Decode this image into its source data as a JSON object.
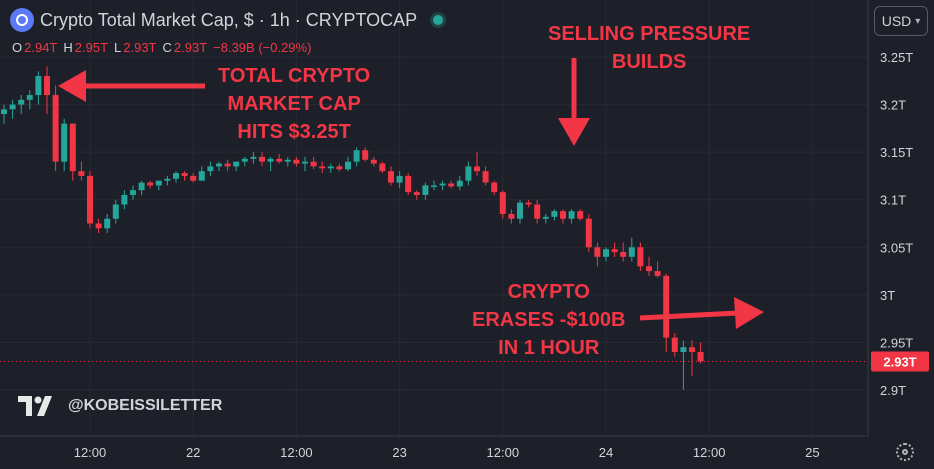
{
  "header": {
    "title": "Crypto Total Market Cap, $ · 1h · CRYPTOCAP",
    "ohlc": [
      {
        "k": "O",
        "v": "2.94T"
      },
      {
        "k": "H",
        "v": "2.95T"
      },
      {
        "k": "L",
        "v": "2.93T"
      },
      {
        "k": "C",
        "v": "2.93T"
      },
      {
        "k": "",
        "v": "−8.39B (−0.29%)"
      }
    ]
  },
  "currency": "USD",
  "annotations": {
    "peak": [
      "TOTAL CRYPTO",
      "MARKET CAP",
      "HITS $3.25T"
    ],
    "selling": [
      "SELLING PRESSURE",
      "BUILDS"
    ],
    "crash": [
      "CRYPTO",
      "ERASES -$100B",
      "IN 1 HOUR"
    ]
  },
  "watermark": "@KOBEISSILETTER",
  "icons": {
    "logo": "crypto-logo-icon",
    "tv": "tradingview-logo-icon",
    "settings": "gear-icon",
    "currency_chevron": "chevron-down-icon"
  },
  "colors": {
    "up": "#26a69a",
    "down": "#f23645",
    "annotation": "#f23645",
    "background": "#1e2029"
  },
  "chart_data": {
    "type": "candlestick",
    "y_unit": "trillion USD",
    "ylim": [
      2.85,
      3.28
    ],
    "y_ticks": [
      {
        "v": 3.25,
        "label": "3.25T"
      },
      {
        "v": 3.2,
        "label": "3.2T"
      },
      {
        "v": 3.15,
        "label": "3.15T"
      },
      {
        "v": 3.1,
        "label": "3.1T"
      },
      {
        "v": 3.05,
        "label": "3.05T"
      },
      {
        "v": 3.0,
        "label": "3T"
      },
      {
        "v": 2.95,
        "label": "2.95T"
      },
      {
        "v": 2.9,
        "label": "2.9T"
      }
    ],
    "x_ticks": [
      {
        "i": 10,
        "label": "12:00"
      },
      {
        "i": 22,
        "label": "22"
      },
      {
        "i": 34,
        "label": "12:00"
      },
      {
        "i": 46,
        "label": "23"
      },
      {
        "i": 58,
        "label": "12:00"
      },
      {
        "i": 70,
        "label": "24"
      },
      {
        "i": 82,
        "label": "12:00"
      },
      {
        "i": 94,
        "label": "25"
      }
    ],
    "last_price": {
      "v": 2.93,
      "label": "2.93T"
    },
    "candles": [
      [
        3.19,
        3.2,
        3.18,
        3.195
      ],
      [
        3.195,
        3.205,
        3.185,
        3.2
      ],
      [
        3.2,
        3.21,
        3.19,
        3.205
      ],
      [
        3.205,
        3.215,
        3.195,
        3.21
      ],
      [
        3.21,
        3.235,
        3.2,
        3.23
      ],
      [
        3.23,
        3.24,
        3.19,
        3.21
      ],
      [
        3.21,
        3.22,
        3.13,
        3.14
      ],
      [
        3.14,
        3.185,
        3.13,
        3.18
      ],
      [
        3.18,
        3.18,
        3.12,
        3.13
      ],
      [
        3.13,
        3.14,
        3.12,
        3.125
      ],
      [
        3.125,
        3.13,
        3.07,
        3.075
      ],
      [
        3.075,
        3.08,
        3.065,
        3.07
      ],
      [
        3.07,
        3.085,
        3.065,
        3.08
      ],
      [
        3.08,
        3.1,
        3.075,
        3.095
      ],
      [
        3.095,
        3.11,
        3.09,
        3.105
      ],
      [
        3.105,
        3.115,
        3.1,
        3.11
      ],
      [
        3.11,
        3.12,
        3.105,
        3.118
      ],
      [
        3.118,
        3.12,
        3.112,
        3.115
      ],
      [
        3.115,
        3.12,
        3.11,
        3.12
      ],
      [
        3.12,
        3.125,
        3.115,
        3.122
      ],
      [
        3.122,
        3.13,
        3.118,
        3.128
      ],
      [
        3.128,
        3.13,
        3.12,
        3.125
      ],
      [
        3.125,
        3.128,
        3.118,
        3.12
      ],
      [
        3.12,
        3.135,
        3.12,
        3.13
      ],
      [
        3.13,
        3.14,
        3.125,
        3.135
      ],
      [
        3.135,
        3.14,
        3.13,
        3.138
      ],
      [
        3.138,
        3.142,
        3.13,
        3.135
      ],
      [
        3.135,
        3.14,
        3.13,
        3.14
      ],
      [
        3.14,
        3.145,
        3.135,
        3.143
      ],
      [
        3.143,
        3.15,
        3.138,
        3.145
      ],
      [
        3.145,
        3.15,
        3.135,
        3.14
      ],
      [
        3.14,
        3.145,
        3.13,
        3.143
      ],
      [
        3.143,
        3.148,
        3.138,
        3.14
      ],
      [
        3.14,
        3.145,
        3.135,
        3.142
      ],
      [
        3.142,
        3.145,
        3.135,
        3.138
      ],
      [
        3.138,
        3.145,
        3.13,
        3.14
      ],
      [
        3.14,
        3.145,
        3.132,
        3.135
      ],
      [
        3.135,
        3.14,
        3.128,
        3.133
      ],
      [
        3.133,
        3.138,
        3.128,
        3.135
      ],
      [
        3.135,
        3.138,
        3.13,
        3.132
      ],
      [
        3.132,
        3.145,
        3.13,
        3.14
      ],
      [
        3.14,
        3.155,
        3.135,
        3.152
      ],
      [
        3.152,
        3.155,
        3.14,
        3.142
      ],
      [
        3.142,
        3.145,
        3.135,
        3.138
      ],
      [
        3.138,
        3.14,
        3.128,
        3.13
      ],
      [
        3.13,
        3.135,
        3.115,
        3.118
      ],
      [
        3.118,
        3.13,
        3.112,
        3.125
      ],
      [
        3.125,
        3.128,
        3.105,
        3.108
      ],
      [
        3.108,
        3.11,
        3.1,
        3.105
      ],
      [
        3.105,
        3.118,
        3.1,
        3.115
      ],
      [
        3.115,
        3.12,
        3.11,
        3.115
      ],
      [
        3.115,
        3.12,
        3.11,
        3.117
      ],
      [
        3.117,
        3.12,
        3.112,
        3.114
      ],
      [
        3.114,
        3.125,
        3.11,
        3.12
      ],
      [
        3.12,
        3.14,
        3.115,
        3.135
      ],
      [
        3.135,
        3.15,
        3.125,
        3.13
      ],
      [
        3.13,
        3.135,
        3.115,
        3.118
      ],
      [
        3.118,
        3.12,
        3.105,
        3.108
      ],
      [
        3.108,
        3.11,
        3.08,
        3.085
      ],
      [
        3.085,
        3.09,
        3.075,
        3.08
      ],
      [
        3.08,
        3.1,
        3.075,
        3.097
      ],
      [
        3.097,
        3.1,
        3.092,
        3.095
      ],
      [
        3.095,
        3.1,
        3.075,
        3.08
      ],
      [
        3.08,
        3.085,
        3.075,
        3.082
      ],
      [
        3.082,
        3.09,
        3.078,
        3.088
      ],
      [
        3.088,
        3.09,
        3.075,
        3.08
      ],
      [
        3.08,
        3.09,
        3.075,
        3.088
      ],
      [
        3.088,
        3.09,
        3.078,
        3.08
      ],
      [
        3.08,
        3.085,
        3.045,
        3.05
      ],
      [
        3.05,
        3.055,
        3.03,
        3.04
      ],
      [
        3.04,
        3.05,
        3.035,
        3.048
      ],
      [
        3.048,
        3.055,
        3.04,
        3.045
      ],
      [
        3.045,
        3.055,
        3.035,
        3.04
      ],
      [
        3.04,
        3.06,
        3.035,
        3.05
      ],
      [
        3.05,
        3.055,
        3.025,
        3.03
      ],
      [
        3.03,
        3.04,
        3.02,
        3.025
      ],
      [
        3.025,
        3.035,
        3.018,
        3.02
      ],
      [
        3.02,
        3.022,
        2.94,
        2.955
      ],
      [
        2.955,
        2.96,
        2.935,
        2.94
      ],
      [
        2.94,
        2.952,
        2.9,
        2.945
      ],
      [
        2.945,
        2.952,
        2.915,
        2.94
      ],
      [
        2.94,
        2.95,
        2.928,
        2.93
      ]
    ]
  }
}
